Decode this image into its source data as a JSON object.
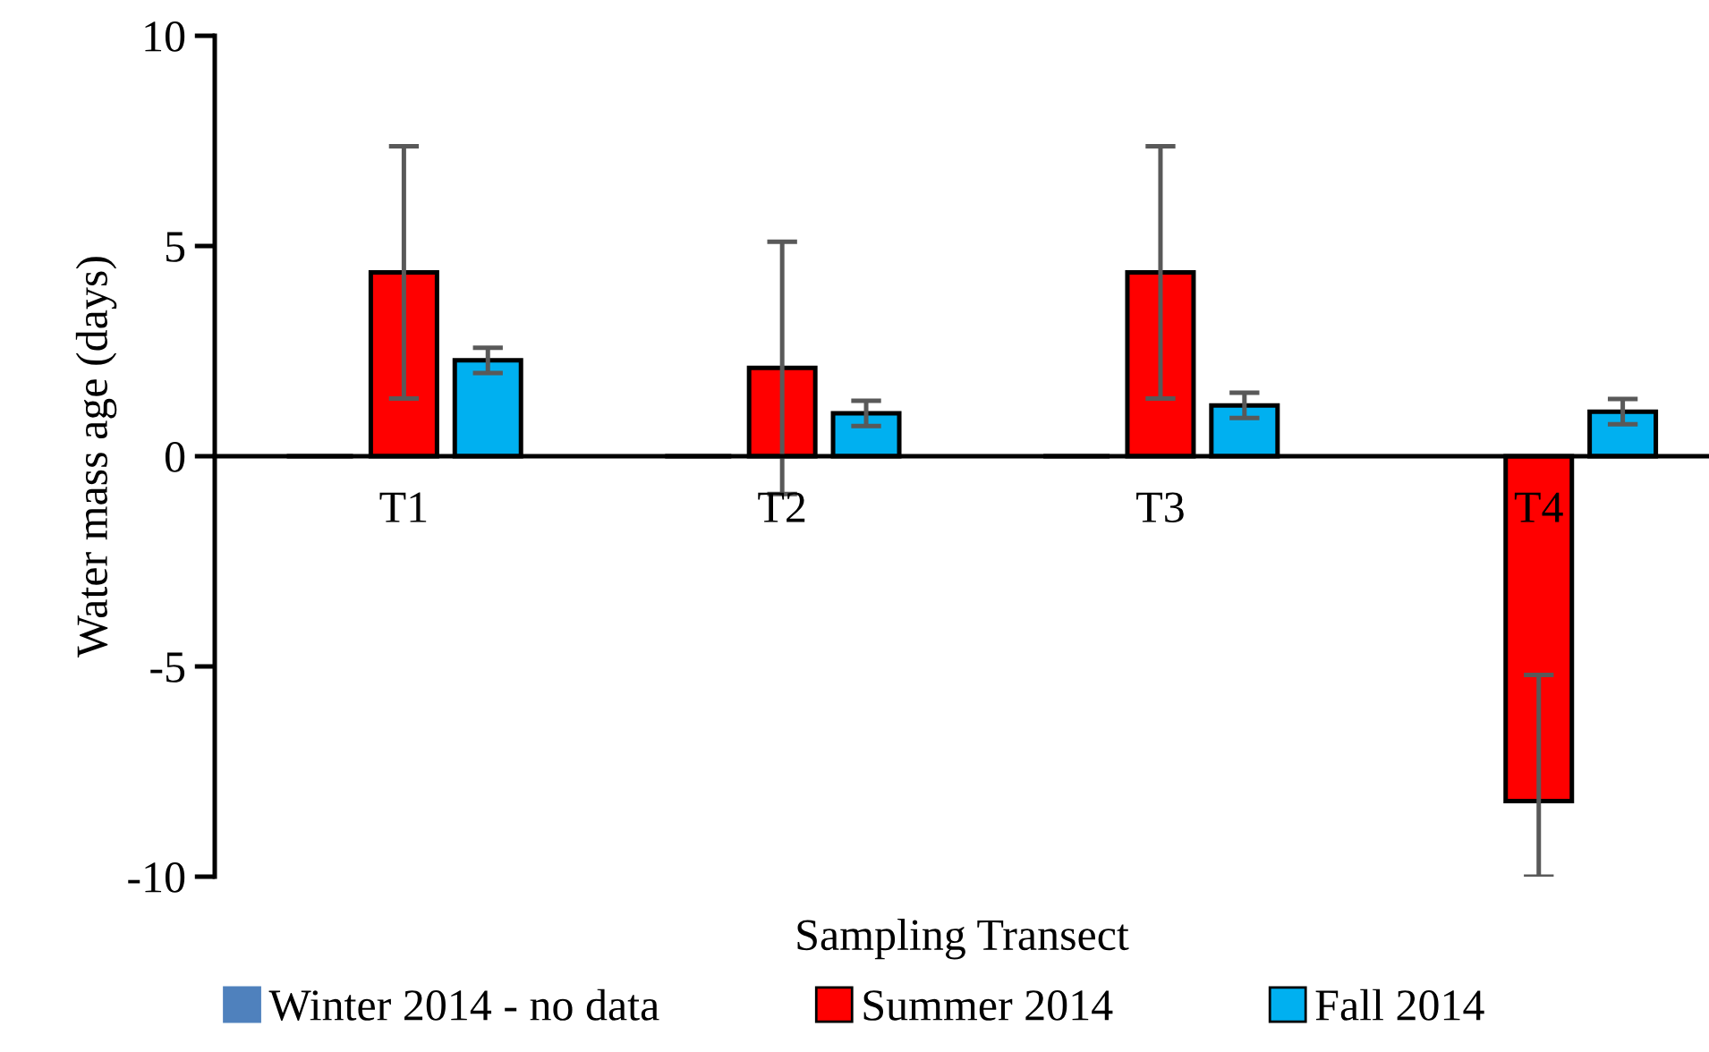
{
  "chart_data": {
    "type": "bar",
    "xlabel": "Sampling Transect",
    "ylabel": "Water mass age (days)",
    "categories": [
      "T1",
      "T2",
      "T3",
      "T4"
    ],
    "series": [
      {
        "name": "Winter 2014 - no data",
        "color": "#4f81bd",
        "values": [
          0,
          0,
          0,
          null
        ]
      },
      {
        "name": "Summer 2014",
        "color": "#ff0000",
        "values": [
          4.37,
          2.1,
          4.37,
          -8.2
        ],
        "errors": [
          3.0,
          3.0,
          3.0,
          [
            -10,
            -5.2
          ]
        ]
      },
      {
        "name": "Fall 2014",
        "color": "#00b0f0",
        "values": [
          2.28,
          1.02,
          1.21,
          1.06
        ],
        "errors": [
          0.3,
          0.3,
          0.3,
          0.3
        ]
      }
    ],
    "ylim": [
      -10,
      10
    ],
    "yticks": [
      -10,
      -5,
      0,
      5,
      10
    ],
    "grid": false,
    "legend": "bottom"
  }
}
